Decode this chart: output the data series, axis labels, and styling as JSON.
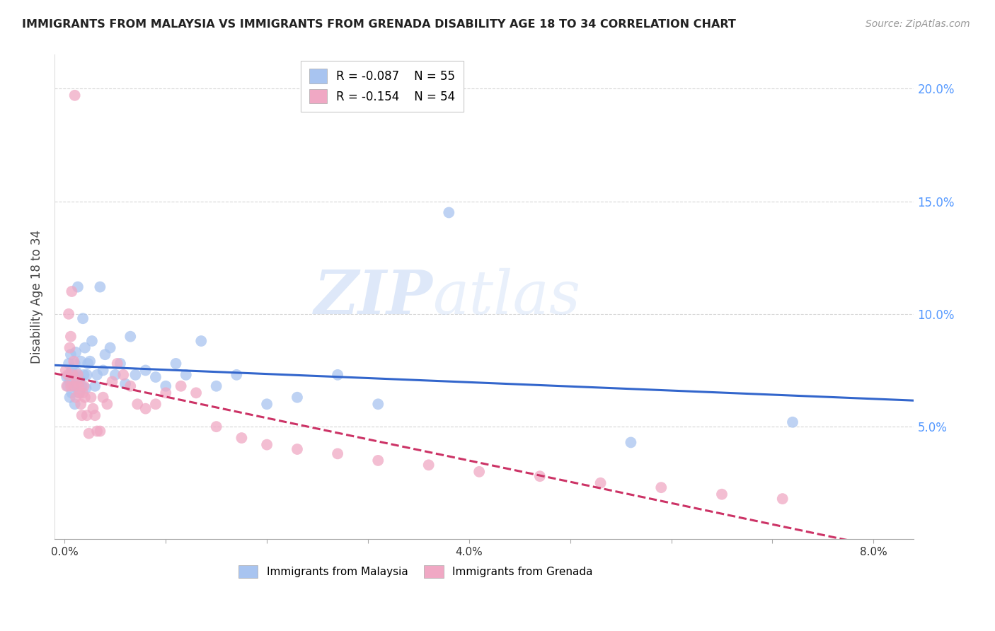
{
  "title": "IMMIGRANTS FROM MALAYSIA VS IMMIGRANTS FROM GRENADA DISABILITY AGE 18 TO 34 CORRELATION CHART",
  "source": "Source: ZipAtlas.com",
  "ylabel": "Disability Age 18 to 34",
  "watermark_part1": "ZIP",
  "watermark_part2": "atlas",
  "legend_malaysia_R": "-0.087",
  "legend_malaysia_N": "55",
  "legend_grenada_R": "-0.154",
  "legend_grenada_N": "54",
  "malaysia_color": "#a8c4f0",
  "grenada_color": "#f0a8c4",
  "malaysia_line_color": "#3366cc",
  "grenada_line_color": "#cc3366",
  "right_axis_color": "#5599ff",
  "x_min": -0.001,
  "x_max": 0.084,
  "y_min": 0.0,
  "y_max": 0.215,
  "x_ticks": [
    0.0,
    0.01,
    0.02,
    0.03,
    0.04,
    0.05,
    0.06,
    0.07,
    0.08
  ],
  "x_tick_labels_show": [
    0.0,
    0.04,
    0.08
  ],
  "y_ticks": [
    0.05,
    0.1,
    0.15,
    0.2
  ],
  "malaysia_x": [
    0.0002,
    0.0003,
    0.0004,
    0.0005,
    0.0005,
    0.0006,
    0.0006,
    0.0007,
    0.0007,
    0.0008,
    0.0009,
    0.001,
    0.001,
    0.0011,
    0.0012,
    0.0012,
    0.0013,
    0.0014,
    0.0015,
    0.0016,
    0.0017,
    0.0018,
    0.0019,
    0.002,
    0.0021,
    0.0022,
    0.0023,
    0.0025,
    0.0027,
    0.003,
    0.0032,
    0.0035,
    0.0038,
    0.004,
    0.0045,
    0.005,
    0.0055,
    0.006,
    0.0065,
    0.007,
    0.008,
    0.009,
    0.01,
    0.011,
    0.012,
    0.0135,
    0.015,
    0.017,
    0.02,
    0.023,
    0.027,
    0.031,
    0.038,
    0.056,
    0.072
  ],
  "malaysia_y": [
    0.072,
    0.068,
    0.078,
    0.063,
    0.07,
    0.074,
    0.082,
    0.065,
    0.075,
    0.068,
    0.073,
    0.06,
    0.078,
    0.083,
    0.068,
    0.074,
    0.112,
    0.065,
    0.071,
    0.079,
    0.068,
    0.098,
    0.073,
    0.085,
    0.067,
    0.073,
    0.078,
    0.079,
    0.088,
    0.068,
    0.073,
    0.112,
    0.075,
    0.082,
    0.085,
    0.073,
    0.078,
    0.069,
    0.09,
    0.073,
    0.075,
    0.072,
    0.068,
    0.078,
    0.073,
    0.088,
    0.068,
    0.073,
    0.06,
    0.063,
    0.073,
    0.06,
    0.145,
    0.043,
    0.052
  ],
  "grenada_x": [
    0.0001,
    0.0002,
    0.0003,
    0.0004,
    0.0005,
    0.0006,
    0.0006,
    0.0007,
    0.0008,
    0.0009,
    0.001,
    0.0011,
    0.0012,
    0.0013,
    0.0014,
    0.0015,
    0.0016,
    0.0017,
    0.0018,
    0.0019,
    0.002,
    0.0022,
    0.0024,
    0.0026,
    0.0028,
    0.003,
    0.0032,
    0.0035,
    0.0038,
    0.0042,
    0.0047,
    0.0052,
    0.0058,
    0.0065,
    0.0072,
    0.008,
    0.009,
    0.01,
    0.0115,
    0.013,
    0.015,
    0.0175,
    0.02,
    0.023,
    0.027,
    0.031,
    0.036,
    0.041,
    0.047,
    0.053,
    0.059,
    0.065,
    0.071,
    0.001
  ],
  "grenada_y": [
    0.075,
    0.068,
    0.073,
    0.1,
    0.085,
    0.09,
    0.068,
    0.11,
    0.073,
    0.079,
    0.068,
    0.063,
    0.07,
    0.073,
    0.068,
    0.065,
    0.06,
    0.055,
    0.065,
    0.068,
    0.063,
    0.055,
    0.047,
    0.063,
    0.058,
    0.055,
    0.048,
    0.048,
    0.063,
    0.06,
    0.07,
    0.078,
    0.073,
    0.068,
    0.06,
    0.058,
    0.06,
    0.065,
    0.068,
    0.065,
    0.05,
    0.045,
    0.042,
    0.04,
    0.038,
    0.035,
    0.033,
    0.03,
    0.028,
    0.025,
    0.023,
    0.02,
    0.018,
    0.197
  ]
}
